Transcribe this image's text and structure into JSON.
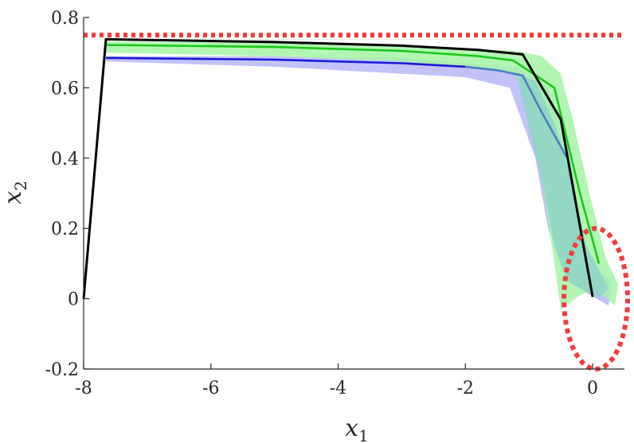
{
  "chart_data": {
    "type": "line",
    "title": "",
    "xlabel": {
      "base": "x",
      "sub": "1"
    },
    "ylabel": {
      "base": "x",
      "sub": "2"
    },
    "xlim": [
      -8,
      0.5
    ],
    "ylim": [
      -0.2,
      0.8
    ],
    "xticks": [
      -8,
      -6,
      -4,
      -2,
      0
    ],
    "yticks": [
      -0.2,
      0,
      0.2,
      0.4,
      0.6,
      0.8
    ],
    "xtick_labels": [
      "-8",
      "-6",
      "-4",
      "-2",
      "0"
    ],
    "ytick_labels": [
      "-0.2",
      "0",
      "0.2",
      "0.4",
      "0.6",
      "0.8"
    ],
    "grid": false,
    "colors": {
      "black": "#000000",
      "green": "#19c819",
      "blue": "#1a1ad6",
      "blue_tail": "#4a7fc4",
      "green_band": "#a6f5a6",
      "blue_band": "#b7b7f8",
      "overlap_band": "#8fd3c8",
      "red": "#f03c3c"
    },
    "reference_line": {
      "y": 0.75,
      "style": "dotted"
    },
    "target_region": {
      "type": "ellipse",
      "cx": 0.05,
      "cy": 0.0,
      "rx": 0.5,
      "ry": 0.2,
      "style": "dotted"
    },
    "series": [
      {
        "key": "black",
        "points": [
          [
            -8,
            0
          ],
          [
            -7.65,
            0.738
          ],
          [
            -5,
            0.73
          ],
          [
            -3,
            0.72
          ],
          [
            -1.8,
            0.708
          ],
          [
            -1.1,
            0.695
          ],
          [
            -0.5,
            0.51
          ],
          [
            0,
            0.005
          ]
        ]
      },
      {
        "key": "green",
        "points": [
          [
            -7.65,
            0.722
          ],
          [
            -5,
            0.716
          ],
          [
            -3,
            0.705
          ],
          [
            -1.8,
            0.69
          ],
          [
            -1.25,
            0.678
          ],
          [
            -0.6,
            0.6
          ],
          [
            -0.2,
            0.3
          ],
          [
            0.1,
            0.1
          ]
        ]
      },
      {
        "key": "blue",
        "points": [
          [
            -7.65,
            0.685
          ],
          [
            -5,
            0.68
          ],
          [
            -3,
            0.67
          ],
          [
            -2,
            0.66
          ]
        ]
      },
      {
        "key": "blue_tail",
        "points": [
          [
            -2,
            0.66
          ],
          [
            -1.5,
            0.65
          ],
          [
            -1.1,
            0.635
          ],
          [
            -0.8,
            0.53
          ],
          [
            -0.4,
            0.4
          ]
        ]
      }
    ],
    "bands": [
      {
        "key": "blue_band",
        "polygon": [
          [
            -7.65,
            0.69
          ],
          [
            -5,
            0.69
          ],
          [
            -3,
            0.685
          ],
          [
            -2,
            0.67
          ],
          [
            -1.2,
            0.66
          ],
          [
            -0.7,
            0.6
          ],
          [
            -0.3,
            0.35
          ],
          [
            -0.05,
            0.1
          ],
          [
            0.3,
            0.05
          ],
          [
            0.25,
            -0.02
          ],
          [
            -0.4,
            0.05
          ],
          [
            -0.7,
            0.2
          ],
          [
            -0.9,
            0.4
          ],
          [
            -1.3,
            0.6
          ],
          [
            -2,
            0.63
          ],
          [
            -3,
            0.64
          ],
          [
            -5,
            0.66
          ],
          [
            -7.65,
            0.675
          ]
        ]
      },
      {
        "key": "green_band",
        "polygon": [
          [
            -7.65,
            0.732
          ],
          [
            -5,
            0.728
          ],
          [
            -3,
            0.72
          ],
          [
            -2,
            0.71
          ],
          [
            -1.2,
            0.705
          ],
          [
            -0.8,
            0.69
          ],
          [
            -0.5,
            0.64
          ],
          [
            -0.3,
            0.5
          ],
          [
            -0.05,
            0.3
          ],
          [
            0.2,
            0.12
          ],
          [
            0.4,
            0.04
          ],
          [
            0.35,
            -0.02
          ],
          [
            0.05,
            0.03
          ],
          [
            -0.2,
            0.01
          ],
          [
            -0.5,
            -0.03
          ],
          [
            -0.6,
            0.1
          ],
          [
            -0.8,
            0.35
          ],
          [
            -1.0,
            0.55
          ],
          [
            -1.2,
            0.64
          ],
          [
            -2,
            0.66
          ],
          [
            -3,
            0.675
          ],
          [
            -5,
            0.69
          ],
          [
            -7.65,
            0.7
          ]
        ]
      },
      {
        "key": "overlap_band",
        "polygon": [
          [
            -1.2,
            0.64
          ],
          [
            -0.9,
            0.62
          ],
          [
            -0.6,
            0.5
          ],
          [
            -0.35,
            0.35
          ],
          [
            -0.1,
            0.15
          ],
          [
            0.25,
            0.03
          ],
          [
            0.1,
            0.0
          ],
          [
            -0.4,
            0.05
          ],
          [
            -0.6,
            0.15
          ],
          [
            -0.75,
            0.3
          ],
          [
            -0.95,
            0.45
          ],
          [
            -1.15,
            0.6
          ]
        ]
      }
    ]
  }
}
